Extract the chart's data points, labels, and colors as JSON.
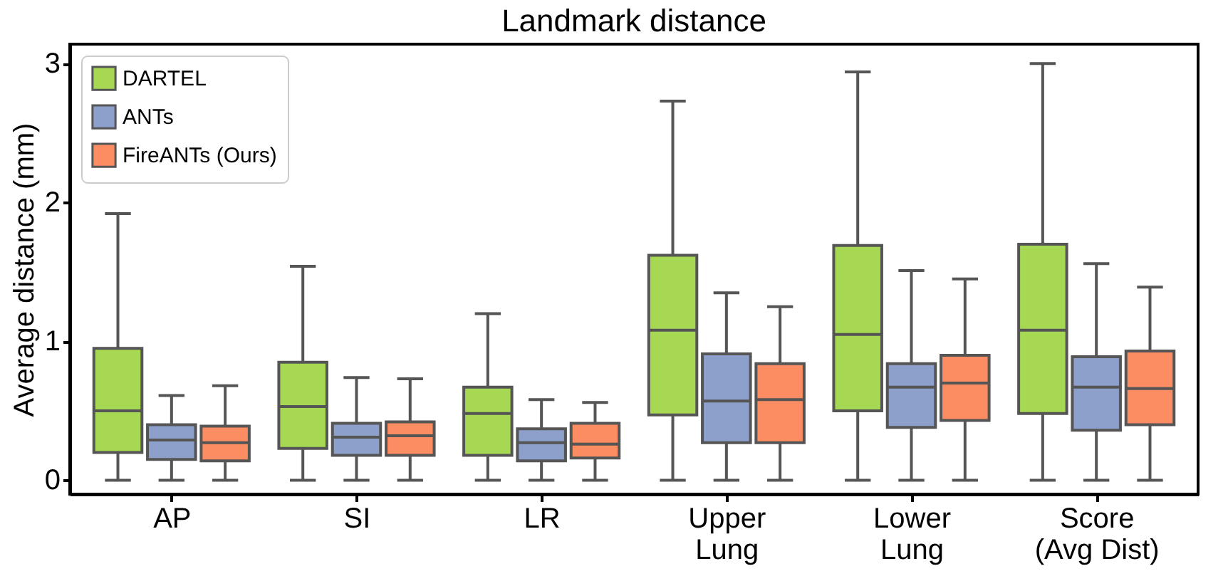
{
  "chart_data": {
    "type": "box",
    "title": "Landmark distance",
    "ylabel": "Average distance (mm)",
    "categories": [
      "AP",
      "SI",
      "LR",
      "Upper Lung",
      "Lower Lung",
      "Score (Avg Dist)"
    ],
    "ylim": [
      -0.1,
      3.14
    ],
    "yticks": [
      0,
      1,
      2,
      3
    ],
    "grid": false,
    "legend": "top left",
    "series": [
      {
        "name": "DARTEL",
        "color": "#a6d854",
        "boxes": [
          {
            "low": 0,
            "q1": 0.2,
            "median": 0.5,
            "q3": 0.95,
            "high": 1.92
          },
          {
            "low": 0,
            "q1": 0.23,
            "median": 0.53,
            "q3": 0.85,
            "high": 1.54
          },
          {
            "low": 0,
            "q1": 0.18,
            "median": 0.48,
            "q3": 0.67,
            "high": 1.2
          },
          {
            "low": 0,
            "q1": 0.47,
            "median": 1.08,
            "q3": 1.62,
            "high": 2.73
          },
          {
            "low": 0,
            "q1": 0.5,
            "median": 1.05,
            "q3": 1.69,
            "high": 2.94
          },
          {
            "low": 0,
            "q1": 0.48,
            "median": 1.08,
            "q3": 1.7,
            "high": 3.0
          }
        ]
      },
      {
        "name": "ANTs",
        "color": "#8da0cb",
        "boxes": [
          {
            "low": 0,
            "q1": 0.15,
            "median": 0.29,
            "q3": 0.4,
            "high": 0.61
          },
          {
            "low": 0,
            "q1": 0.18,
            "median": 0.31,
            "q3": 0.41,
            "high": 0.74
          },
          {
            "low": 0,
            "q1": 0.14,
            "median": 0.27,
            "q3": 0.37,
            "high": 0.58
          },
          {
            "low": 0,
            "q1": 0.27,
            "median": 0.57,
            "q3": 0.91,
            "high": 1.35
          },
          {
            "low": 0,
            "q1": 0.38,
            "median": 0.67,
            "q3": 0.84,
            "high": 1.51
          },
          {
            "low": 0,
            "q1": 0.36,
            "median": 0.67,
            "q3": 0.89,
            "high": 1.56
          }
        ]
      },
      {
        "name": "FireANTs (Ours)",
        "color": "#fc8d62",
        "boxes": [
          {
            "low": 0,
            "q1": 0.14,
            "median": 0.27,
            "q3": 0.39,
            "high": 0.68
          },
          {
            "low": 0,
            "q1": 0.18,
            "median": 0.32,
            "q3": 0.42,
            "high": 0.73
          },
          {
            "low": 0,
            "q1": 0.16,
            "median": 0.26,
            "q3": 0.41,
            "high": 0.56
          },
          {
            "low": 0,
            "q1": 0.27,
            "median": 0.58,
            "q3": 0.84,
            "high": 1.25
          },
          {
            "low": 0,
            "q1": 0.43,
            "median": 0.7,
            "q3": 0.9,
            "high": 1.45
          },
          {
            "low": 0,
            "q1": 0.4,
            "median": 0.66,
            "q3": 0.93,
            "high": 1.39
          }
        ]
      }
    ]
  }
}
